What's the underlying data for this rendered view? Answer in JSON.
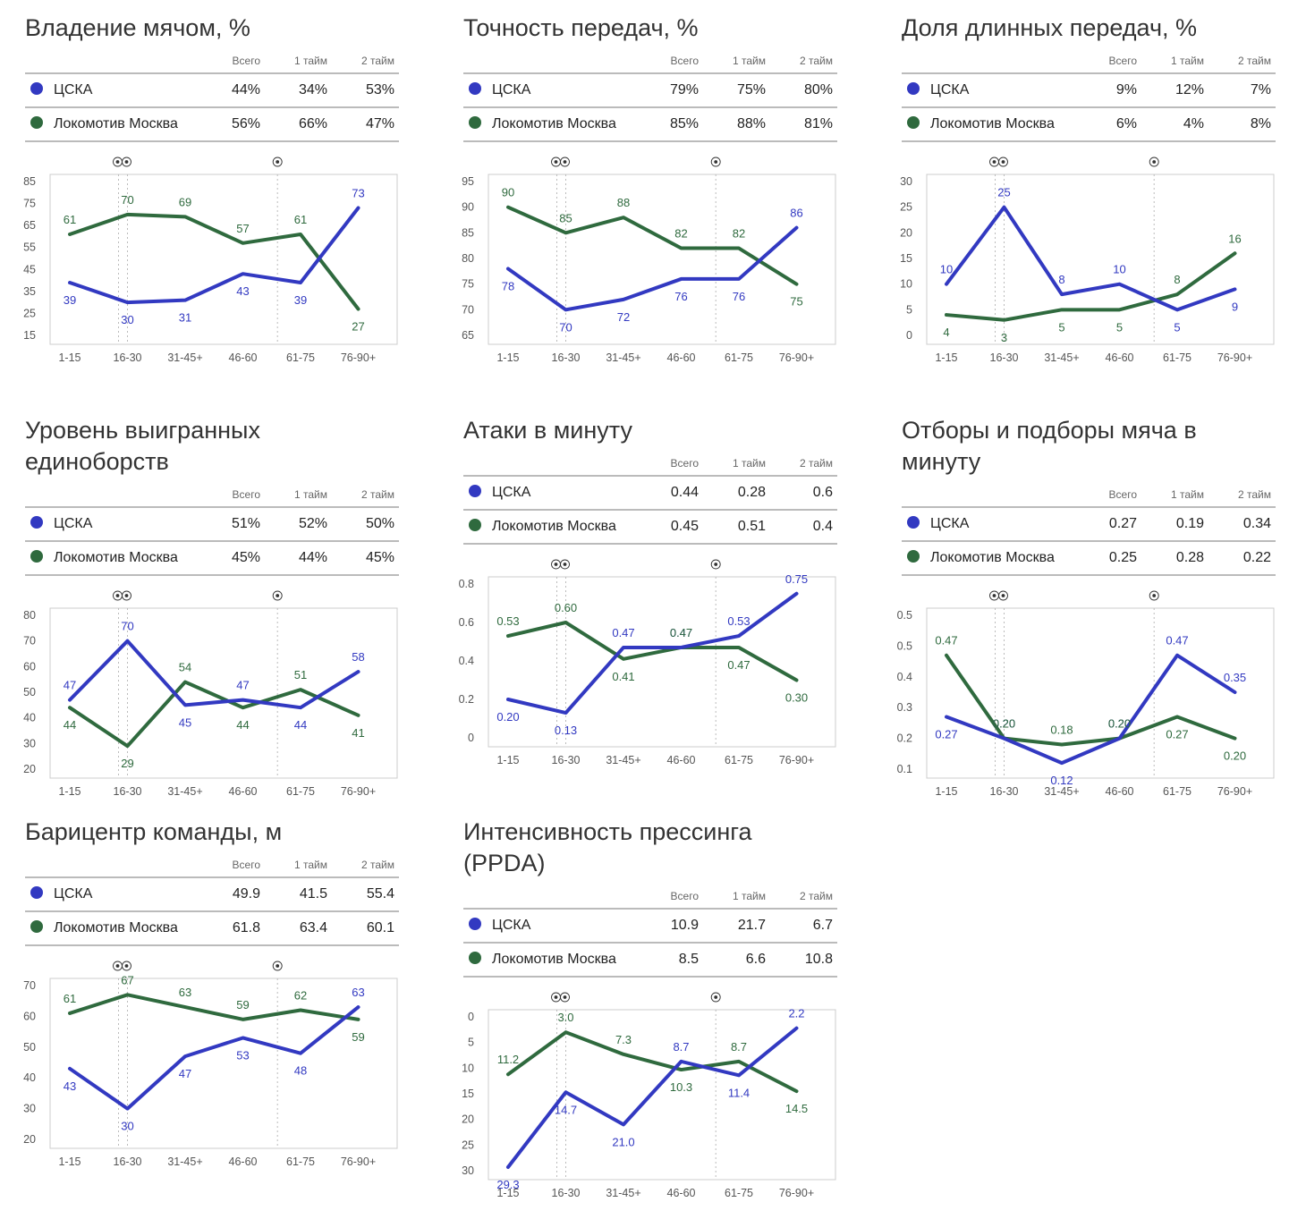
{
  "colors": {
    "cska": "#3239c1",
    "loko": "#2f6a3e",
    "grid": "#e6e6e6",
    "axis": "#cccccc",
    "text": "#555555"
  },
  "table_headers": [
    "Всего",
    "1 тайм",
    "2 тайм"
  ],
  "goal_icon": "soccer-ball-icon",
  "x_categories": [
    "1-15",
    "16-30",
    "31-45+",
    "46-60",
    "61-75",
    "76-90+"
  ],
  "panels": [
    {
      "title": "Владение мячом, %",
      "rows": [
        {
          "team": "ЦСКА",
          "color": "#3239c1",
          "total": "44%",
          "h1": "34%",
          "h2": "53%"
        },
        {
          "team": "Локомотив Москва",
          "color": "#2f6a3e",
          "total": "56%",
          "h1": "66%",
          "h2": "47%"
        }
      ]
    },
    {
      "title": "Точность передач, %",
      "rows": [
        {
          "team": "ЦСКА",
          "color": "#3239c1",
          "total": "79%",
          "h1": "75%",
          "h2": "80%"
        },
        {
          "team": "Локомотив Москва",
          "color": "#2f6a3e",
          "total": "85%",
          "h1": "88%",
          "h2": "81%"
        }
      ]
    },
    {
      "title": "Доля длинных передач, %",
      "rows": [
        {
          "team": "ЦСКА",
          "color": "#3239c1",
          "total": "9%",
          "h1": "12%",
          "h2": "7%"
        },
        {
          "team": "Локомотив Москва",
          "color": "#2f6a3e",
          "total": "6%",
          "h1": "4%",
          "h2": "8%"
        }
      ]
    },
    {
      "title": "Уровень выигранных единоборств",
      "rows": [
        {
          "team": "ЦСКА",
          "color": "#3239c1",
          "total": "51%",
          "h1": "52%",
          "h2": "50%"
        },
        {
          "team": "Локомотив Москва",
          "color": "#2f6a3e",
          "total": "45%",
          "h1": "44%",
          "h2": "45%"
        }
      ]
    },
    {
      "title": "Атаки в минуту",
      "rows": [
        {
          "team": "ЦСКА",
          "color": "#3239c1",
          "total": "0.44",
          "h1": "0.28",
          "h2": "0.6"
        },
        {
          "team": "Локомотив Москва",
          "color": "#2f6a3e",
          "total": "0.45",
          "h1": "0.51",
          "h2": "0.4"
        }
      ]
    },
    {
      "title": "Отборы и подборы мяча в минуту",
      "rows": [
        {
          "team": "ЦСКА",
          "color": "#3239c1",
          "total": "0.27",
          "h1": "0.19",
          "h2": "0.34"
        },
        {
          "team": "Локомотив Москва",
          "color": "#2f6a3e",
          "total": "0.25",
          "h1": "0.28",
          "h2": "0.22"
        }
      ]
    },
    {
      "title": "Барицентр команды, м",
      "rows": [
        {
          "team": "ЦСКА",
          "color": "#3239c1",
          "total": "49.9",
          "h1": "41.5",
          "h2": "55.4"
        },
        {
          "team": "Локомотив Москва",
          "color": "#2f6a3e",
          "total": "61.8",
          "h1": "63.4",
          "h2": "60.1"
        }
      ]
    },
    {
      "title": "Интенсивность прессинга (PPDA)",
      "rows": [
        {
          "team": "ЦСКА",
          "color": "#3239c1",
          "total": "10.9",
          "h1": "21.7",
          "h2": "6.7"
        },
        {
          "team": "Локомотив Москва",
          "color": "#2f6a3e",
          "total": "8.5",
          "h1": "6.6",
          "h2": "10.8"
        }
      ]
    }
  ],
  "chart_data": [
    {
      "type": "line",
      "title": "Владение мячом, %",
      "categories": [
        "1-15",
        "16-30",
        "31-45+",
        "46-60",
        "61-75",
        "76-90+"
      ],
      "yticks": [
        "85",
        "75",
        "65",
        "55",
        "45",
        "35",
        "25",
        "15"
      ],
      "ylim": [
        15,
        85
      ],
      "reversed": false,
      "goals": [
        {
          "at": 1,
          "count": 2
        },
        {
          "at": 3.6,
          "count": 1
        }
      ],
      "series": [
        {
          "name": "ЦСКА",
          "color": "#3239c1",
          "values": [
            39,
            30,
            31,
            43,
            39,
            73
          ],
          "labels": [
            "39",
            "30",
            "31",
            "43",
            "39",
            "73"
          ]
        },
        {
          "name": "Локомотив Москва",
          "color": "#2f6a3e",
          "values": [
            61,
            70,
            69,
            57,
            61,
            27
          ],
          "labels": [
            "61",
            "70",
            "69",
            "57",
            "61",
            "27"
          ]
        }
      ]
    },
    {
      "type": "line",
      "title": "Точность передач, %",
      "categories": [
        "1-15",
        "16-30",
        "31-45+",
        "46-60",
        "61-75",
        "76-90+"
      ],
      "yticks": [
        "95",
        "90",
        "85",
        "80",
        "75",
        "70",
        "65"
      ],
      "ylim": [
        65,
        95
      ],
      "reversed": false,
      "goals": [
        {
          "at": 1,
          "count": 2
        },
        {
          "at": 3.6,
          "count": 1
        }
      ],
      "series": [
        {
          "name": "ЦСКА",
          "color": "#3239c1",
          "values": [
            78,
            70,
            72,
            76,
            76,
            86
          ],
          "labels": [
            "78",
            "70",
            "72",
            "76",
            "76",
            "86"
          ]
        },
        {
          "name": "Локомотив Москва",
          "color": "#2f6a3e",
          "values": [
            90,
            85,
            88,
            82,
            82,
            75
          ],
          "labels": [
            "90",
            "85",
            "88",
            "82",
            "82",
            "75"
          ]
        }
      ]
    },
    {
      "type": "line",
      "title": "Доля длинных передач, %",
      "categories": [
        "1-15",
        "16-30",
        "31-45+",
        "46-60",
        "61-75",
        "76-90+"
      ],
      "yticks": [
        "30",
        "25",
        "20",
        "15",
        "10",
        "5",
        "0"
      ],
      "ylim": [
        0,
        30
      ],
      "reversed": false,
      "goals": [
        {
          "at": 1,
          "count": 2
        },
        {
          "at": 3.6,
          "count": 1
        }
      ],
      "series": [
        {
          "name": "ЦСКА",
          "color": "#3239c1",
          "values": [
            10,
            25,
            8,
            10,
            5,
            9
          ],
          "labels": [
            "10",
            "25",
            "8",
            "10",
            "5",
            "9"
          ]
        },
        {
          "name": "Локомотив Москва",
          "color": "#2f6a3e",
          "values": [
            4,
            3,
            5,
            5,
            8,
            16
          ],
          "labels": [
            "4",
            "3",
            "5",
            "5",
            "8",
            "16"
          ]
        }
      ]
    },
    {
      "type": "line",
      "title": "Уровень выигранных единоборств",
      "categories": [
        "1-15",
        "16-30",
        "31-45+",
        "46-60",
        "61-75",
        "76-90+"
      ],
      "yticks": [
        "80",
        "70",
        "60",
        "50",
        "40",
        "30",
        "20"
      ],
      "ylim": [
        20,
        80
      ],
      "reversed": false,
      "goals": [
        {
          "at": 1,
          "count": 2
        },
        {
          "at": 3.6,
          "count": 1
        }
      ],
      "series": [
        {
          "name": "ЦСКА",
          "color": "#3239c1",
          "values": [
            47,
            70,
            45,
            47,
            44,
            58
          ],
          "labels": [
            "47",
            "70",
            "45",
            "47",
            "44",
            "58"
          ]
        },
        {
          "name": "Локомотив Москва",
          "color": "#2f6a3e",
          "values": [
            44,
            29,
            54,
            44,
            51,
            41
          ],
          "labels": [
            "44",
            "29",
            "54",
            "44",
            "51",
            "41"
          ]
        }
      ]
    },
    {
      "type": "line",
      "title": "Атаки в минуту",
      "categories": [
        "1-15",
        "16-30",
        "31-45+",
        "46-60",
        "61-75",
        "76-90+"
      ],
      "yticks": [
        "0.8",
        "0.6",
        "0.4",
        "0.2",
        "0"
      ],
      "ylim": [
        0,
        0.8
      ],
      "reversed": false,
      "goals": [
        {
          "at": 1,
          "count": 2
        },
        {
          "at": 3.6,
          "count": 1
        }
      ],
      "series": [
        {
          "name": "ЦСКА",
          "color": "#3239c1",
          "values": [
            0.2,
            0.13,
            0.47,
            0.47,
            0.53,
            0.75
          ],
          "labels": [
            "0.20",
            "0.13",
            "0.47",
            "0.47",
            "0.53",
            "0.75"
          ]
        },
        {
          "name": "Локомотив Москва",
          "color": "#2f6a3e",
          "values": [
            0.53,
            0.6,
            0.41,
            0.47,
            0.47,
            0.3
          ],
          "labels": [
            "0.53",
            "0.60",
            "0.41",
            "0.47",
            "0.47",
            "0.30"
          ]
        }
      ]
    },
    {
      "type": "line",
      "title": "Отборы и подборы мяча в минуту",
      "categories": [
        "1-15",
        "16-30",
        "31-45+",
        "46-60",
        "61-75",
        "76-90+"
      ],
      "yticks": [
        "0.5",
        "0.5",
        "0.4",
        "0.3",
        "0.2",
        "0.1"
      ],
      "ylim": [
        0.1,
        0.6
      ],
      "reversed": false,
      "goals": [
        {
          "at": 1,
          "count": 2
        },
        {
          "at": 3.6,
          "count": 1
        }
      ],
      "series": [
        {
          "name": "ЦСКА",
          "color": "#3239c1",
          "values": [
            0.27,
            0.2,
            0.12,
            0.2,
            0.47,
            0.35
          ],
          "labels": [
            "0.27",
            "0.20",
            "0.12",
            "0.20",
            "0.47",
            "0.35"
          ]
        },
        {
          "name": "Локомотив Москва",
          "color": "#2f6a3e",
          "values": [
            0.47,
            0.2,
            0.18,
            0.2,
            0.27,
            0.2
          ],
          "labels": [
            "0.47",
            "0.20",
            "0.18",
            "0.20",
            "0.27",
            "0.20"
          ]
        }
      ]
    },
    {
      "type": "line",
      "title": "Барицентр команды, м",
      "categories": [
        "1-15",
        "16-30",
        "31-45+",
        "46-60",
        "61-75",
        "76-90+"
      ],
      "yticks": [
        "70",
        "60",
        "50",
        "40",
        "30",
        "20"
      ],
      "ylim": [
        20,
        70
      ],
      "reversed": false,
      "goals": [
        {
          "at": 1,
          "count": 2
        },
        {
          "at": 3.6,
          "count": 1
        }
      ],
      "series": [
        {
          "name": "ЦСКА",
          "color": "#3239c1",
          "values": [
            43,
            30,
            47,
            53,
            48,
            63
          ],
          "labels": [
            "43",
            "30",
            "47",
            "53",
            "48",
            "63"
          ]
        },
        {
          "name": "Локомотив Москва",
          "color": "#2f6a3e",
          "values": [
            61,
            67,
            63,
            59,
            62,
            59
          ],
          "labels": [
            "61",
            "67",
            "63",
            "59",
            "62",
            "59"
          ]
        }
      ]
    },
    {
      "type": "line",
      "title": "Интенсивность прессинга (PPDA)",
      "categories": [
        "1-15",
        "16-30",
        "31-45+",
        "46-60",
        "61-75",
        "76-90+"
      ],
      "yticks": [
        "0",
        "5",
        "10",
        "15",
        "20",
        "25",
        "30"
      ],
      "ylim": [
        0,
        30
      ],
      "reversed": true,
      "goals": [
        {
          "at": 1,
          "count": 2
        },
        {
          "at": 3.6,
          "count": 1
        }
      ],
      "series": [
        {
          "name": "ЦСКА",
          "color": "#3239c1",
          "values": [
            29.3,
            14.7,
            21.0,
            8.7,
            11.4,
            2.2
          ],
          "labels": [
            "29.3",
            "14.7",
            "21.0",
            "8.7",
            "11.4",
            "2.2"
          ]
        },
        {
          "name": "Локомотив Москва",
          "color": "#2f6a3e",
          "values": [
            11.2,
            3.0,
            7.3,
            10.3,
            8.7,
            14.5
          ],
          "labels": [
            "11.2",
            "3.0",
            "7.3",
            "10.3",
            "8.7",
            "14.5"
          ]
        }
      ]
    }
  ]
}
